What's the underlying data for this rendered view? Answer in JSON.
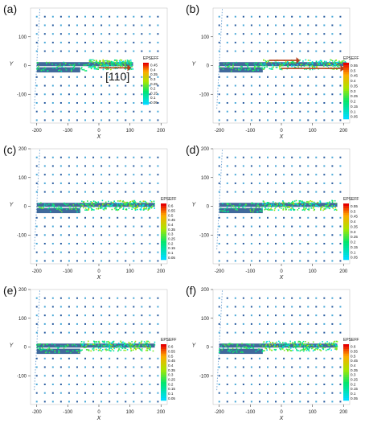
{
  "figure": {
    "panels": [
      {
        "label": "(a)",
        "cbar_title": "EPSEFF",
        "cbar_ticks": [
          "0.45",
          "0.4",
          "0.35",
          "0.3",
          "0.25",
          "0.2",
          "0.15",
          "0.1",
          "0.05"
        ],
        "annotation": "[110]",
        "ylim": [
          -200,
          200
        ],
        "yticks": [
          "100",
          "0",
          "-100"
        ]
      },
      {
        "label": "(b)",
        "cbar_title": "EPSEFF",
        "cbar_ticks": [
          "0.55",
          "0.5",
          "0.45",
          "0.4",
          "0.35",
          "0.3",
          "0.25",
          "0.2",
          "0.15",
          "0.1",
          "0.05"
        ],
        "annotation": "",
        "ylim": [
          -200,
          200
        ],
        "yticks": [
          "100",
          "0",
          "-100"
        ]
      },
      {
        "label": "(c)",
        "cbar_title": "EPSEFF",
        "cbar_ticks": [
          "0.6",
          "0.55",
          "0.5",
          "0.45",
          "0.4",
          "0.35",
          "0.3",
          "0.25",
          "0.2",
          "0.15",
          "0.1",
          "0.05"
        ],
        "annotation": "",
        "ylim": [
          -200,
          200
        ],
        "yticks": [
          "200",
          "100",
          "0",
          "-100"
        ]
      },
      {
        "label": "(d)",
        "cbar_title": "EPSEFF",
        "cbar_ticks": [
          "0.55",
          "0.5",
          "0.45",
          "0.4",
          "0.35",
          "0.3",
          "0.25",
          "0.2",
          "0.15",
          "0.1",
          "0.05"
        ],
        "annotation": "",
        "ylim": [
          -200,
          200
        ],
        "yticks": [
          "200",
          "100",
          "0",
          "-100"
        ]
      },
      {
        "label": "(e)",
        "cbar_title": "EPSEFF",
        "cbar_ticks": [
          "0.6",
          "0.55",
          "0.5",
          "0.45",
          "0.4",
          "0.35",
          "0.3",
          "0.25",
          "0.2",
          "0.15",
          "0.1",
          "0.05"
        ],
        "annotation": "",
        "ylim": [
          -200,
          200
        ],
        "yticks": [
          "200",
          "100",
          "0",
          "-100"
        ]
      },
      {
        "label": "(f)",
        "cbar_title": "EPSEFF",
        "cbar_ticks": [
          "0.6",
          "0.55",
          "0.5",
          "0.45",
          "0.4",
          "0.35",
          "0.3",
          "0.25",
          "0.2",
          "0.15",
          "0.1",
          "0.05"
        ],
        "annotation": "",
        "ylim": [
          -200,
          200
        ],
        "yticks": [
          "200",
          "100",
          "0",
          "-100"
        ]
      }
    ],
    "xticks": [
      "-200",
      "-100",
      "0",
      "100",
      "200"
    ],
    "xlabel": "X",
    "ylabel": "Y",
    "colors": {
      "axis": "#444444",
      "atom": "#3a6fb0",
      "arrow": "#b5401c",
      "dislocation": "#1f4f8a"
    }
  }
}
